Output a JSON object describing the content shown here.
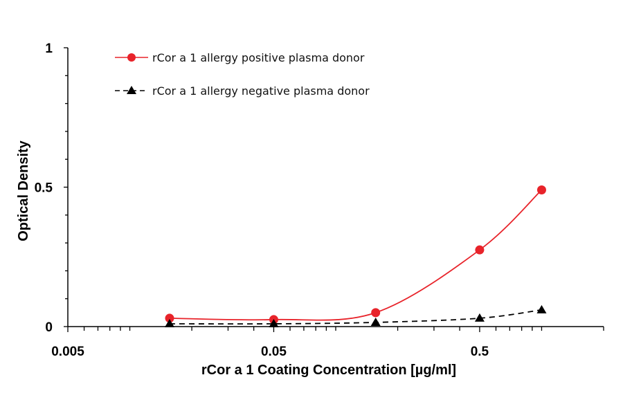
{
  "chart_data": {
    "type": "line",
    "xlabel": "rCor a 1 Coating Concentration [µg/ml]",
    "ylabel": "Optical Density",
    "x_scale": "log",
    "xlim": [
      0.005,
      2.0
    ],
    "ylim": [
      0,
      1
    ],
    "x_ticks": [
      {
        "value": 0.005,
        "label": "0.005"
      },
      {
        "value": 0.05,
        "label": "0.05"
      },
      {
        "value": 0.5,
        "label": "0.5"
      }
    ],
    "y_ticks": [
      {
        "value": 0,
        "label": "0"
      },
      {
        "value": 0.5,
        "label": "0.5"
      },
      {
        "value": 1,
        "label": "1"
      }
    ],
    "legend_position": "top-left",
    "grid": false,
    "series": [
      {
        "name": "rCor a 1 allergy positive plasma donor",
        "color": "#e8232a",
        "marker": "circle",
        "line": "solid",
        "x": [
          0.0156,
          0.05,
          0.1563,
          0.5,
          1.0
        ],
        "y": [
          0.03,
          0.025,
          0.05,
          0.275,
          0.49
        ]
      },
      {
        "name": "rCor a 1 allergy negative plasma donor",
        "color": "#000000",
        "marker": "triangle",
        "line": "dashed",
        "x": [
          0.0156,
          0.05,
          0.1563,
          0.5,
          1.0
        ],
        "y": [
          0.01,
          0.01,
          0.015,
          0.03,
          0.06
        ]
      }
    ]
  }
}
